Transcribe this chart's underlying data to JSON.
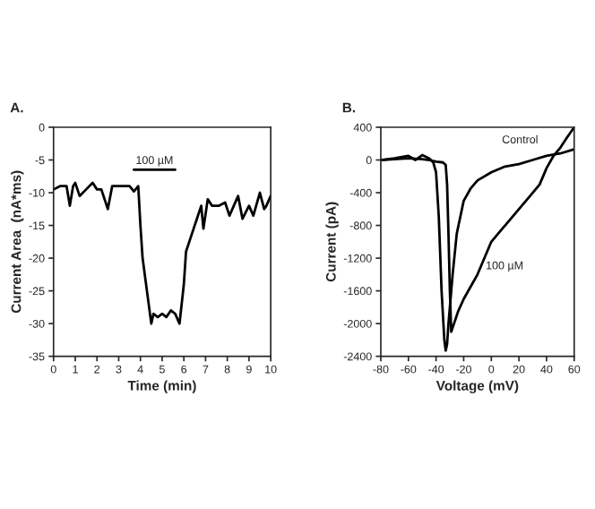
{
  "chart_data": [
    {
      "type": "line",
      "title": "A.",
      "xlabel": "Time (min)",
      "ylabel": "Current Area  (nA*ms)",
      "xlim": [
        0,
        10
      ],
      "ylim": [
        -35,
        0
      ],
      "xticks": [
        0,
        1,
        2,
        3,
        4,
        5,
        6,
        7,
        8,
        9,
        10
      ],
      "yticks": [
        -35,
        -30,
        -25,
        -20,
        -15,
        -10,
        -5,
        0
      ],
      "grid": false,
      "legend": false,
      "series": [
        {
          "name": "100 µM",
          "color": "#000000",
          "x": [
            3.7,
            5.6
          ],
          "values": [
            -6.5,
            -6.5
          ]
        },
        {
          "color": "#000000",
          "x": [
            0,
            0.3,
            0.6,
            0.75,
            0.9,
            1,
            1.2,
            1.5,
            1.8,
            2,
            2.2,
            2.5,
            2.7,
            3,
            3.3,
            3.5,
            3.7,
            3.9,
            4,
            4.1,
            4.3,
            4.5,
            4.6,
            4.8,
            5,
            5.2,
            5.4,
            5.6,
            5.8,
            6,
            6.1,
            6.3,
            6.6,
            6.8,
            6.9,
            7.1,
            7.3,
            7.6,
            7.9,
            8.1,
            8.3,
            8.5,
            8.7,
            9,
            9.2,
            9.5,
            9.7,
            9.8,
            10
          ],
          "values": [
            -9.5,
            -9,
            -9,
            -12,
            -9,
            -8.5,
            -10.5,
            -9.5,
            -8.5,
            -9.5,
            -9.5,
            -12.5,
            -9,
            -9,
            -9,
            -9,
            -9.8,
            -9,
            -15,
            -20,
            -25,
            -30,
            -28.5,
            -29,
            -28.5,
            -29,
            -28,
            -28.5,
            -30,
            -24,
            -19,
            -17,
            -14,
            -12,
            -15.5,
            -11,
            -12,
            -12,
            -11.5,
            -13.5,
            -12,
            -10.5,
            -14,
            -12,
            -13.5,
            -10,
            -12.5,
            -12,
            -10.5
          ]
        }
      ]
    },
    {
      "type": "line",
      "title": "B.",
      "xlabel": "Voltage (mV)",
      "ylabel": "Current (pA)",
      "xlim": [
        -80,
        60
      ],
      "ylim": [
        -2400,
        400
      ],
      "xticks": [
        -80,
        -60,
        -40,
        -20,
        0,
        20,
        40,
        60
      ],
      "yticks": [
        -2400,
        -2000,
        -1600,
        -1200,
        -800,
        -400,
        0,
        400
      ],
      "grid": false,
      "legend": false,
      "series": [
        {
          "name": "Control",
          "color": "#000000",
          "x": [
            -80,
            -70,
            -60,
            -55,
            -50,
            -45,
            -42,
            -40,
            -38,
            -36,
            -34,
            -33,
            -32,
            -31,
            -28,
            -25,
            -20,
            -15,
            -10,
            0,
            10,
            20,
            30,
            40,
            50,
            60
          ],
          "values": [
            0,
            20,
            50,
            0,
            60,
            20,
            -30,
            -150,
            -700,
            -1600,
            -2200,
            -2330,
            -2250,
            -2000,
            -1400,
            -900,
            -500,
            -350,
            -250,
            -150,
            -80,
            -50,
            0,
            50,
            80,
            130
          ]
        },
        {
          "name": "100 µM",
          "color": "#000000",
          "x": [
            -80,
            -70,
            -60,
            -50,
            -45,
            -40,
            -35,
            -33,
            -32,
            -31,
            -30,
            -29,
            -27,
            -24,
            -20,
            -15,
            -10,
            -5,
            0,
            5,
            10,
            20,
            30,
            35,
            40,
            45,
            50,
            55,
            60
          ],
          "values": [
            0,
            10,
            20,
            10,
            0,
            -20,
            -30,
            -60,
            -300,
            -900,
            -1600,
            -2100,
            -2000,
            -1850,
            -1700,
            -1550,
            -1400,
            -1200,
            -1000,
            -900,
            -800,
            -600,
            -400,
            -300,
            -100,
            50,
            150,
            280,
            400
          ]
        }
      ]
    }
  ]
}
